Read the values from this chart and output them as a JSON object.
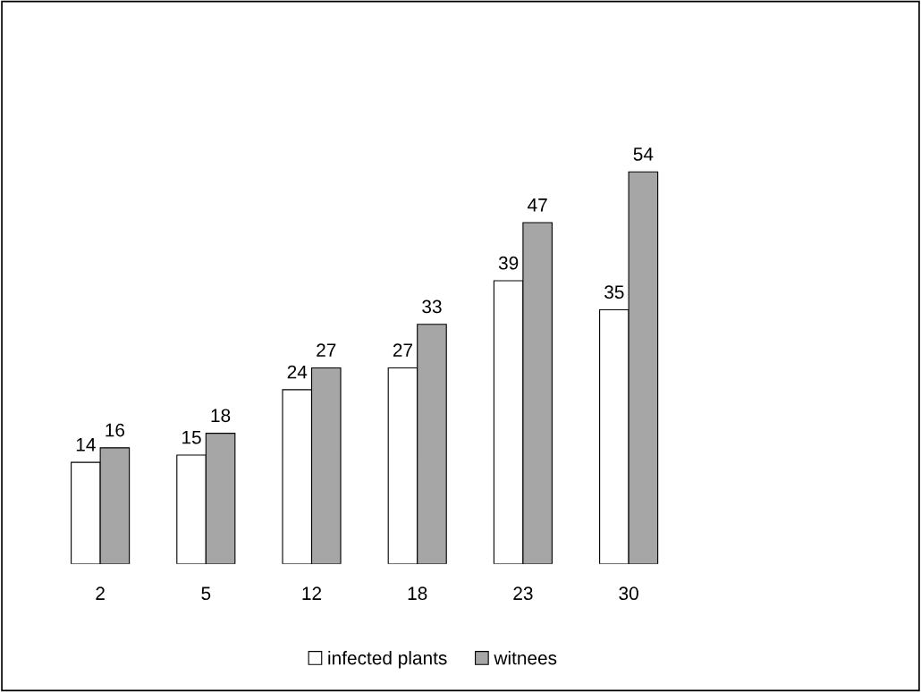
{
  "chart_data": {
    "type": "bar",
    "categories": [
      "2",
      "5",
      "12",
      "18",
      "23",
      "30"
    ],
    "series": [
      {
        "name": "infected plants",
        "color": "#ffffff",
        "values": [
          14,
          15,
          24,
          27,
          39,
          35
        ]
      },
      {
        "name": "witnees",
        "color": "#a6a6a6",
        "values": [
          16,
          18,
          27,
          33,
          47,
          54
        ]
      }
    ],
    "data_labels": true,
    "legend": "bottom",
    "grid": false
  }
}
